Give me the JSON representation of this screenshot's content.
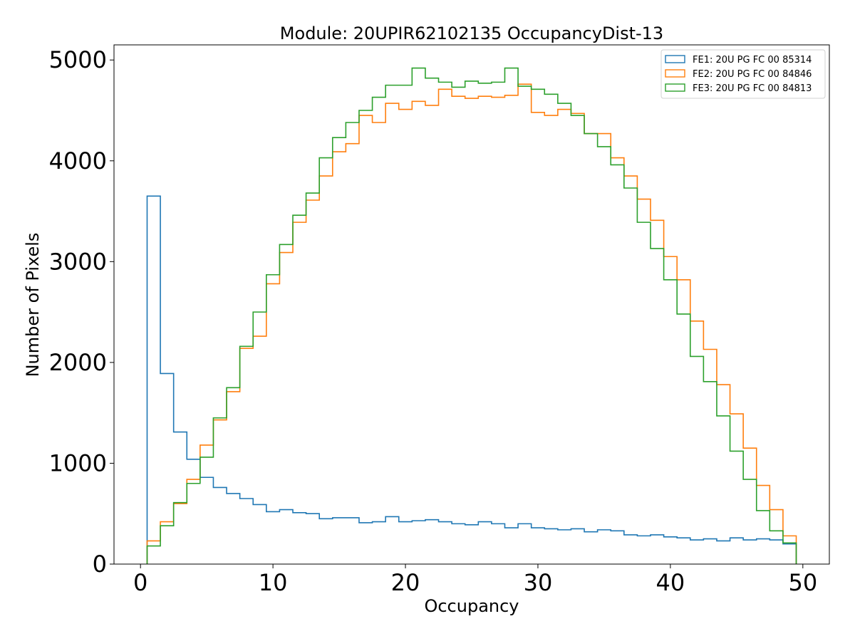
{
  "chart_data": {
    "type": "step-histogram",
    "title": "Module: 20UPIR62102135 OccupancyDist-13",
    "xlabel": "Occupancy",
    "ylabel": "Number of Pixels",
    "xlim": [
      -2,
      52
    ],
    "ylim": [
      0,
      5150
    ],
    "xticks": [
      0,
      10,
      20,
      30,
      40,
      50
    ],
    "yticks": [
      0,
      1000,
      2000,
      3000,
      4000,
      5000
    ],
    "bin_start": 0.5,
    "bin_width": 1,
    "legend_position": "top-right",
    "series": [
      {
        "name": "FE1: 20U PG FC 00 85314",
        "color": "#1f77b4",
        "values": [
          3650,
          1890,
          1310,
          1040,
          860,
          760,
          700,
          650,
          590,
          520,
          540,
          510,
          500,
          450,
          460,
          460,
          410,
          420,
          470,
          420,
          430,
          440,
          420,
          400,
          390,
          420,
          400,
          360,
          400,
          360,
          350,
          340,
          350,
          320,
          340,
          330,
          290,
          280,
          290,
          270,
          260,
          240,
          250,
          230,
          260,
          240,
          250,
          240,
          200
        ]
      },
      {
        "name": "FE2: 20U PG FC 00 84846",
        "color": "#ff7f0e",
        "values": [
          230,
          420,
          600,
          840,
          1180,
          1430,
          1710,
          2140,
          2260,
          2780,
          3090,
          3390,
          3610,
          3850,
          4090,
          4170,
          4450,
          4380,
          4570,
          4510,
          4590,
          4550,
          4710,
          4640,
          4620,
          4640,
          4630,
          4650,
          4760,
          4480,
          4450,
          4510,
          4470,
          4270,
          4270,
          4030,
          3850,
          3620,
          3410,
          3050,
          2820,
          2410,
          2130,
          1780,
          1490,
          1150,
          780,
          540,
          280
        ]
      },
      {
        "name": "FE3: 20U PG FC 00 84813",
        "color": "#2ca02c",
        "values": [
          180,
          380,
          610,
          800,
          1060,
          1450,
          1750,
          2160,
          2500,
          2870,
          3170,
          3460,
          3680,
          4030,
          4230,
          4380,
          4500,
          4630,
          4750,
          4750,
          4920,
          4820,
          4780,
          4730,
          4790,
          4770,
          4780,
          4920,
          4740,
          4710,
          4660,
          4570,
          4450,
          4270,
          4140,
          3960,
          3730,
          3390,
          3130,
          2820,
          2480,
          2060,
          1810,
          1470,
          1120,
          840,
          530,
          330,
          210
        ]
      }
    ]
  }
}
